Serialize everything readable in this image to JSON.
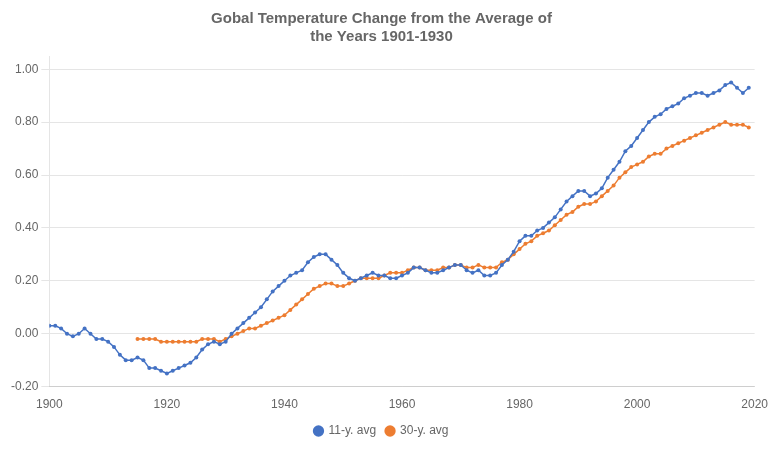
{
  "chart_data": {
    "type": "line",
    "title": "Gobal Temperature Change from the Average of\nthe Years 1901-1930",
    "xlim": [
      1900,
      2020
    ],
    "xticks": [
      1900,
      1920,
      1940,
      1960,
      1980,
      2000,
      2020
    ],
    "ylim": [
      -0.2,
      1.05
    ],
    "yticks": [
      {
        "value": -0.2,
        "label": "-0.20"
      },
      {
        "value": 0.0,
        "label": "0.00"
      },
      {
        "value": 0.2,
        "label": "0.20"
      },
      {
        "value": 0.4,
        "label": "0.40"
      },
      {
        "value": 0.6,
        "label": "0.60"
      },
      {
        "value": 0.8,
        "label": "0.80"
      },
      {
        "value": 1.0,
        "label": "1.00"
      }
    ],
    "grid": "y",
    "legend": "bottom",
    "marker": "circle",
    "series": [
      {
        "name": "11-y. avg",
        "color": "#4472c4",
        "x": [
          1900,
          1901,
          1902,
          1903,
          1904,
          1905,
          1906,
          1907,
          1908,
          1909,
          1910,
          1911,
          1912,
          1913,
          1914,
          1915,
          1916,
          1917,
          1918,
          1919,
          1920,
          1921,
          1922,
          1923,
          1924,
          1925,
          1926,
          1927,
          1928,
          1929,
          1930,
          1931,
          1932,
          1933,
          1934,
          1935,
          1936,
          1937,
          1938,
          1939,
          1940,
          1941,
          1942,
          1943,
          1944,
          1945,
          1946,
          1947,
          1948,
          1949,
          1950,
          1951,
          1952,
          1953,
          1954,
          1955,
          1956,
          1957,
          1958,
          1959,
          1960,
          1961,
          1962,
          1963,
          1964,
          1965,
          1966,
          1967,
          1968,
          1969,
          1970,
          1971,
          1972,
          1973,
          1974,
          1975,
          1976,
          1977,
          1978,
          1979,
          1980,
          1981,
          1982,
          1983,
          1984,
          1985,
          1986,
          1987,
          1988,
          1989,
          1990,
          1991,
          1992,
          1993,
          1994,
          1995,
          1996,
          1997,
          1998,
          1999,
          2000,
          2001,
          2002,
          2003,
          2004,
          2005,
          2006,
          2007,
          2008,
          2009,
          2010,
          2011,
          2012,
          2013,
          2014,
          2015,
          2016,
          2017,
          2018,
          2019
        ],
        "values": [
          0.03,
          0.03,
          0.02,
          0.0,
          -0.01,
          0.0,
          0.02,
          0.0,
          -0.02,
          -0.02,
          -0.03,
          -0.05,
          -0.08,
          -0.1,
          -0.1,
          -0.09,
          -0.1,
          -0.13,
          -0.13,
          -0.14,
          -0.15,
          -0.14,
          -0.13,
          -0.12,
          -0.11,
          -0.09,
          -0.06,
          -0.04,
          -0.03,
          -0.04,
          -0.03,
          0.0,
          0.02,
          0.04,
          0.06,
          0.08,
          0.1,
          0.13,
          0.16,
          0.18,
          0.2,
          0.22,
          0.23,
          0.24,
          0.27,
          0.29,
          0.3,
          0.3,
          0.28,
          0.26,
          0.23,
          0.21,
          0.2,
          0.21,
          0.22,
          0.23,
          0.22,
          0.22,
          0.21,
          0.21,
          0.22,
          0.23,
          0.25,
          0.25,
          0.24,
          0.23,
          0.23,
          0.24,
          0.25,
          0.26,
          0.26,
          0.24,
          0.23,
          0.24,
          0.22,
          0.22,
          0.23,
          0.26,
          0.28,
          0.31,
          0.35,
          0.37,
          0.37,
          0.39,
          0.4,
          0.42,
          0.44,
          0.47,
          0.5,
          0.52,
          0.54,
          0.54,
          0.52,
          0.53,
          0.55,
          0.59,
          0.62,
          0.65,
          0.69,
          0.71,
          0.74,
          0.77,
          0.8,
          0.82,
          0.83,
          0.85,
          0.86,
          0.87,
          0.89,
          0.9,
          0.91,
          0.91,
          0.9,
          0.91,
          0.92,
          0.94,
          0.95,
          0.93,
          0.91,
          0.93
        ]
      },
      {
        "name": "30-y. avg",
        "color": "#ed7d31",
        "x": [
          1915,
          1916,
          1917,
          1918,
          1919,
          1920,
          1921,
          1922,
          1923,
          1924,
          1925,
          1926,
          1927,
          1928,
          1929,
          1930,
          1931,
          1932,
          1933,
          1934,
          1935,
          1936,
          1937,
          1938,
          1939,
          1940,
          1941,
          1942,
          1943,
          1944,
          1945,
          1946,
          1947,
          1948,
          1949,
          1950,
          1951,
          1952,
          1953,
          1954,
          1955,
          1956,
          1957,
          1958,
          1959,
          1960,
          1961,
          1962,
          1963,
          1964,
          1965,
          1966,
          1967,
          1968,
          1969,
          1970,
          1971,
          1972,
          1973,
          1974,
          1975,
          1976,
          1977,
          1978,
          1979,
          1980,
          1981,
          1982,
          1983,
          1984,
          1985,
          1986,
          1987,
          1988,
          1989,
          1990,
          1991,
          1992,
          1993,
          1994,
          1995,
          1996,
          1997,
          1998,
          1999,
          2000,
          2001,
          2002,
          2003,
          2004,
          2005,
          2006,
          2007,
          2008,
          2009,
          2010,
          2011,
          2012,
          2013,
          2014,
          2015,
          2016,
          2017,
          2018,
          2019
        ],
        "values": [
          -0.02,
          -0.02,
          -0.02,
          -0.02,
          -0.03,
          -0.03,
          -0.03,
          -0.03,
          -0.03,
          -0.03,
          -0.03,
          -0.02,
          -0.02,
          -0.02,
          -0.03,
          -0.02,
          -0.01,
          0.0,
          0.01,
          0.02,
          0.02,
          0.03,
          0.04,
          0.05,
          0.06,
          0.07,
          0.09,
          0.11,
          0.13,
          0.15,
          0.17,
          0.18,
          0.19,
          0.19,
          0.18,
          0.18,
          0.19,
          0.2,
          0.21,
          0.21,
          0.21,
          0.21,
          0.22,
          0.23,
          0.23,
          0.23,
          0.24,
          0.25,
          0.25,
          0.24,
          0.24,
          0.24,
          0.25,
          0.25,
          0.26,
          0.26,
          0.25,
          0.25,
          0.26,
          0.25,
          0.25,
          0.25,
          0.27,
          0.28,
          0.3,
          0.32,
          0.34,
          0.35,
          0.37,
          0.38,
          0.39,
          0.41,
          0.43,
          0.45,
          0.46,
          0.48,
          0.49,
          0.49,
          0.5,
          0.52,
          0.54,
          0.56,
          0.59,
          0.61,
          0.63,
          0.64,
          0.65,
          0.67,
          0.68,
          0.68,
          0.7,
          0.71,
          0.72,
          0.73,
          0.74,
          0.75,
          0.76,
          0.77,
          0.78,
          0.79,
          0.8,
          0.79,
          0.79,
          0.79,
          0.78
        ]
      }
    ]
  }
}
